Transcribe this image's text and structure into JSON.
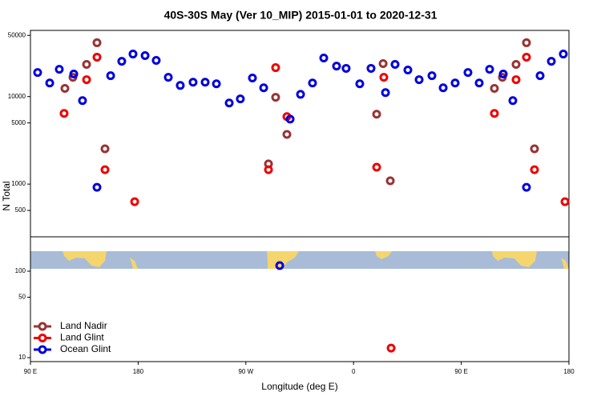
{
  "chart_data": [
    {
      "type": "scatter",
      "title": "40S-30S May (Ver 10_MIP)   2015-01-01 to 2020-12-31",
      "y_label": "N Total",
      "log_y": true,
      "xlim": [
        90,
        540
      ],
      "ylim": [
        250,
        57000
      ],
      "yticks": [
        500,
        1000,
        5000,
        10000,
        50000
      ],
      "series": [
        {
          "color": "#993333",
          "x": [
            118.8,
            125.5,
            136.9,
            145.6,
            152.3,
            288.9,
            294.9,
            304.3,
            379.3,
            384.7,
            390.7,
            477.7,
            484.4,
            495.8,
            504.5,
            511.2
          ],
          "values": [
            12400,
            16600,
            23300,
            41200,
            2530,
            1700,
            9800,
            3700,
            6290,
            23800,
            1090,
            12400,
            16600,
            23300,
            41200,
            2530
          ]
        },
        {
          "color": "#ee0000",
          "x": [
            118.1,
            136.9,
            145.6,
            152.3,
            177.1,
            288.9,
            294.9,
            304.3,
            379.3,
            385.3,
            477.7,
            495.8,
            504.5,
            511.2,
            536.7
          ],
          "values": [
            6420,
            15600,
            28200,
            1460,
            630,
            1460,
            21400,
            5900,
            1560,
            16600,
            6420,
            15600,
            28200,
            1460,
            630
          ]
        },
        {
          "color": "#0000dd",
          "x": [
            96.0,
            106.1,
            114.1,
            126.2,
            133.5,
            145.6,
            157.0,
            166.3,
            175.7,
            185.8,
            195.1,
            205.2,
            215.2,
            225.9,
            236.0,
            245.4,
            256.1,
            265.4,
            275.5,
            284.9,
            307.0,
            315.7,
            325.7,
            335.1,
            345.8,
            353.8,
            365.2,
            374.6,
            386.7,
            394.7,
            405.4,
            414.8,
            425.5,
            434.9,
            444.9,
            455.6,
            465.0,
            473.7,
            485.1,
            493.1,
            504.5,
            515.9,
            525.3,
            535.3
          ],
          "values": [
            18850,
            14300,
            20500,
            18100,
            9000,
            920,
            17300,
            25300,
            30600,
            29400,
            25900,
            16600,
            13400,
            14600,
            14600,
            14000,
            8450,
            9400,
            16300,
            12600,
            5530,
            10600,
            14300,
            27600,
            22300,
            21000,
            14000,
            21000,
            11100,
            23300,
            20100,
            15600,
            17300,
            12600,
            14300,
            18850,
            14300,
            20500,
            18100,
            9000,
            920,
            17300,
            25300,
            30600
          ]
        }
      ]
    },
    {
      "type": "scatter",
      "x_label": "Longitude (deg E)",
      "log_y": true,
      "xlim": [
        90,
        540
      ],
      "xticks": [
        {
          "value": 90,
          "label": "90 E"
        },
        180,
        {
          "value": 270,
          "label": "90 W"
        },
        {
          "value": 360,
          "label": "0"
        },
        {
          "value": 450,
          "label": "90 E"
        },
        {
          "value": 540,
          "label": "180"
        }
      ],
      "ylim": [
        9,
        250
      ],
      "yticks": [
        10,
        50,
        100
      ],
      "legend": "lower left",
      "series": [
        {
          "name": "Land Nadir",
          "color": "#993333",
          "x": [],
          "values": []
        },
        {
          "name": "Land Glint",
          "color": "#ee0000",
          "x": [
            391.4
          ],
          "values": [
            12.9
          ]
        },
        {
          "name": "Ocean Glint",
          "color": "#0000dd",
          "x": [
            298.3
          ],
          "values": [
            116
          ]
        }
      ]
    }
  ]
}
